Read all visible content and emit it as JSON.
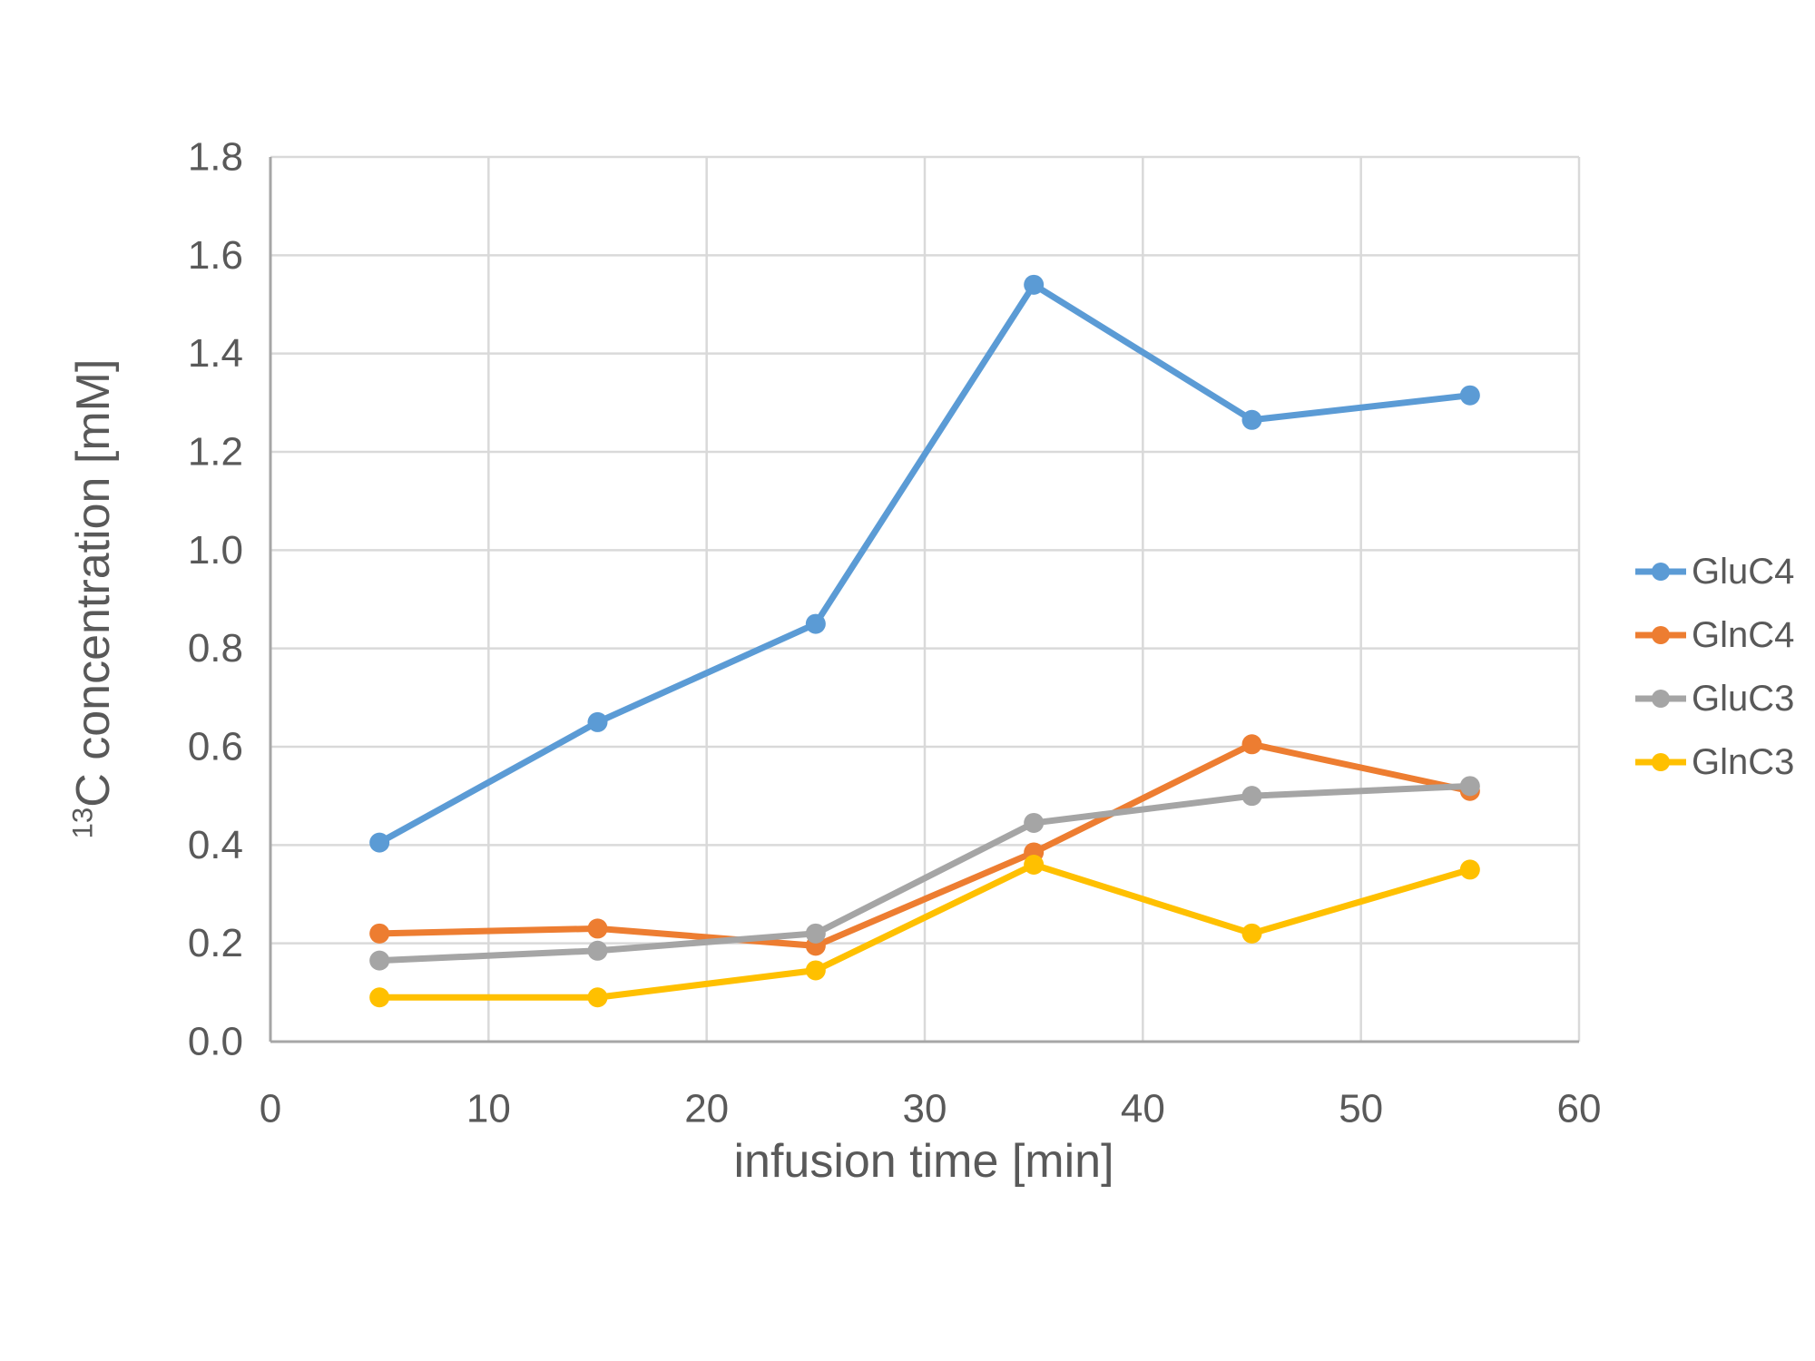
{
  "chart_data": {
    "type": "line",
    "title": "",
    "x": [
      5,
      15,
      25,
      35,
      45,
      55
    ],
    "series": [
      {
        "name": "GluC4",
        "color": "#5B9BD5",
        "values": [
          0.405,
          0.65,
          0.85,
          1.54,
          1.265,
          1.315
        ]
      },
      {
        "name": "GlnC4",
        "color": "#ED7D31",
        "values": [
          0.22,
          0.23,
          0.195,
          0.385,
          0.605,
          0.51
        ]
      },
      {
        "name": "GluC3",
        "color": "#A5A5A5",
        "values": [
          0.165,
          0.185,
          0.22,
          0.445,
          0.5,
          0.52
        ]
      },
      {
        "name": "GlnC3",
        "color": "#FFC000",
        "values": [
          0.09,
          0.09,
          0.145,
          0.36,
          0.22,
          0.35
        ]
      }
    ],
    "xlabel": "infusion time [min]",
    "ylabel": "13C concentration [mM]",
    "ylabel_sup": "13",
    "ylabel_main": "C concentration [mM]",
    "xlim": [
      0,
      60
    ],
    "ylim": [
      0,
      1.8
    ],
    "xticks": [
      0,
      10,
      20,
      30,
      40,
      50,
      60
    ],
    "ytick_labels": [
      "0.0",
      "0.2",
      "0.4",
      "0.6",
      "0.8",
      "1.0",
      "1.2",
      "1.4",
      "1.6",
      "1.8"
    ],
    "grid": true,
    "legend_position": "right",
    "legend_entries": [
      "GluC4",
      "GlnC4",
      "GluC3",
      "GlnC3"
    ]
  },
  "style": {
    "background": "#FFFFFF",
    "gridline_color": "#D9D9D9",
    "axis_line_color": "#A6A6A6",
    "text_color": "#595959"
  }
}
